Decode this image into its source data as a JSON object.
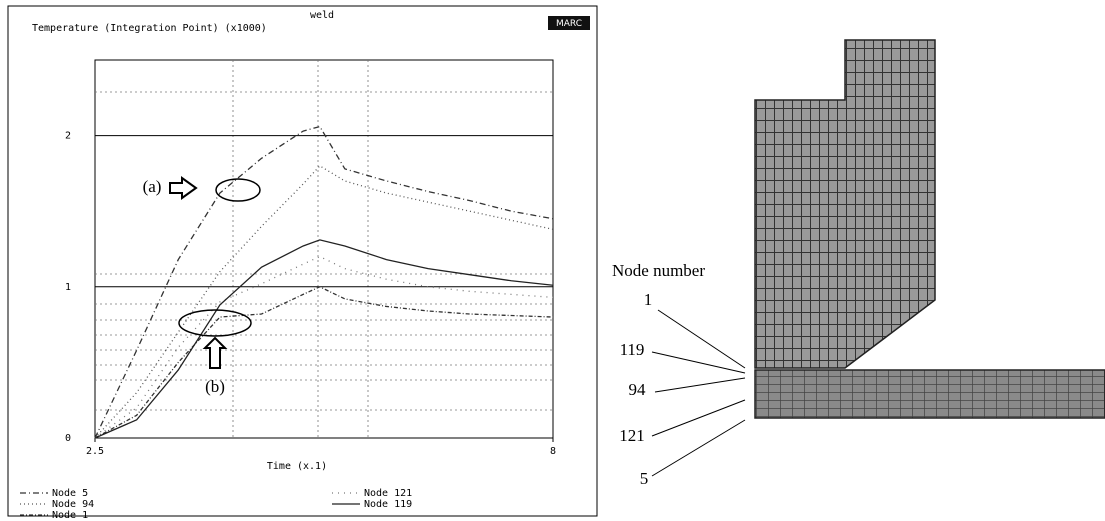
{
  "chart_data": {
    "type": "line",
    "title": "weld",
    "subtitle": "Temperature (Integration Point) (x1000)",
    "logo": "MARC",
    "x_label": "Time (x.1)",
    "x": [
      2.5,
      3,
      3.5,
      4,
      4.5,
      5,
      5.2,
      5.5,
      6,
      6.5,
      7,
      7.5,
      8
    ],
    "series": [
      {
        "name": "Node 5",
        "color": "#333333",
        "values": [
          0,
          0.58,
          1.18,
          1.62,
          1.85,
          2.03,
          2.06,
          1.78,
          1.7,
          1.63,
          1.57,
          1.5,
          1.45
        ]
      },
      {
        "name": "Node 94",
        "color": "#555555",
        "values": [
          0,
          0.3,
          0.7,
          1.1,
          1.4,
          1.68,
          1.8,
          1.7,
          1.62,
          1.56,
          1.5,
          1.44,
          1.38
        ]
      },
      {
        "name": "Node 1",
        "color": "#333333",
        "values": [
          0,
          0.15,
          0.5,
          0.8,
          0.82,
          0.95,
          1.0,
          0.92,
          0.87,
          0.84,
          0.82,
          0.81,
          0.8
        ]
      },
      {
        "name": "Node 121",
        "color": "#777777",
        "values": [
          0,
          0.2,
          0.6,
          0.9,
          1.02,
          1.15,
          1.2,
          1.12,
          1.05,
          1.0,
          0.97,
          0.95,
          0.93
        ]
      },
      {
        "name": "Node 119",
        "color": "#222222",
        "values": [
          0,
          0.12,
          0.45,
          0.88,
          1.13,
          1.27,
          1.31,
          1.27,
          1.18,
          1.12,
          1.08,
          1.04,
          1.01
        ]
      }
    ],
    "xlim": [
      2.5,
      8
    ],
    "xticks": [
      2.5,
      8
    ],
    "ylim": [
      0,
      2.5
    ],
    "yticks": [
      0,
      1,
      2
    ],
    "grid": true,
    "annotations": [
      "(a)",
      "(b)"
    ]
  },
  "diagram": {
    "title": "Node number",
    "nodes": [
      "1",
      "119",
      "94",
      "121",
      "5"
    ]
  }
}
